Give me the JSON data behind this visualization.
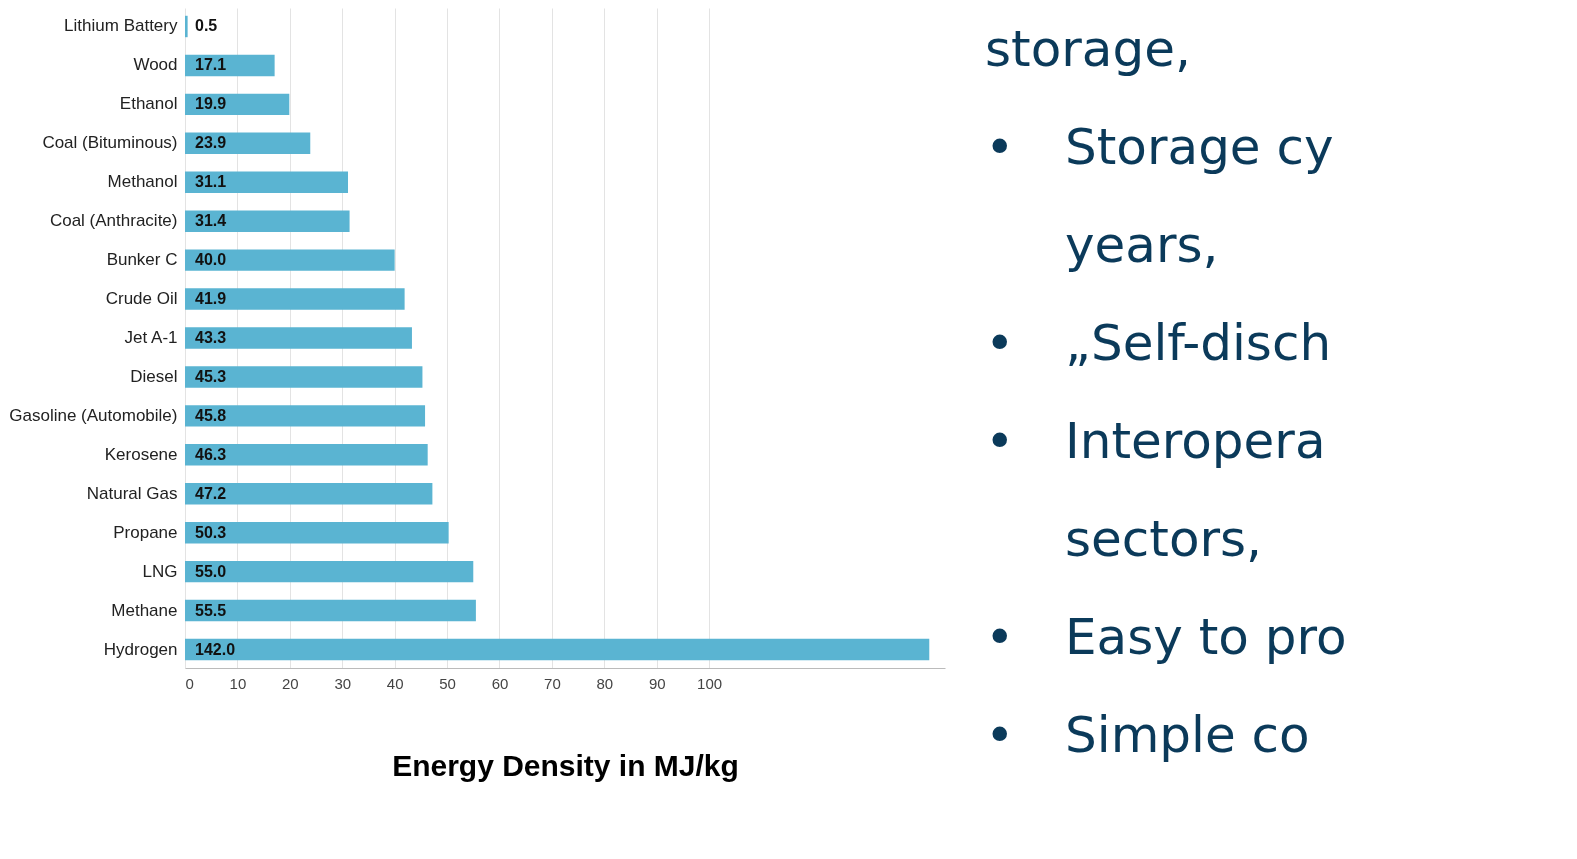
{
  "chart_data": {
    "type": "bar",
    "orientation": "horizontal",
    "xlabel": "Energy Density in MJ/kg",
    "categories": [
      "Lithium Battery",
      "Wood",
      "Ethanol",
      "Coal (Bituminous)",
      "Methanol",
      "Coal (Anthracite)",
      "Bunker C",
      "Crude Oil",
      "Jet A-1",
      "Diesel",
      "Gasoline (Automobile)",
      "Kerosene",
      "Natural Gas",
      "Propane",
      "LNG",
      "Methane",
      "Hydrogen"
    ],
    "values": [
      0.5,
      17.1,
      19.9,
      23.9,
      31.1,
      31.4,
      40.0,
      41.9,
      43.3,
      45.3,
      45.8,
      46.3,
      47.2,
      50.3,
      55.0,
      55.5,
      142.0
    ],
    "value_labels": [
      "0.5",
      "17.1",
      "19.9",
      "23.9",
      "31.1",
      "31.4",
      "40.0",
      "41.9",
      "43.3",
      "45.3",
      "45.8",
      "46.3",
      "47.2",
      "50.3",
      "55.0",
      "55.5",
      "142.0"
    ],
    "color": "#5ab4d2",
    "xlim": [
      0,
      145
    ],
    "xticks": [
      0,
      10,
      20,
      30,
      40,
      50,
      60,
      70,
      80,
      90,
      100
    ],
    "grid": "x",
    "annotations": [
      "storage,",
      "•\tStorage cy",
      "\tyears,",
      "•\t„Self-disch",
      "•\tInteropera",
      "\tsectors,",
      "•\tEasy to pro",
      "•\tSimple co"
    ]
  }
}
